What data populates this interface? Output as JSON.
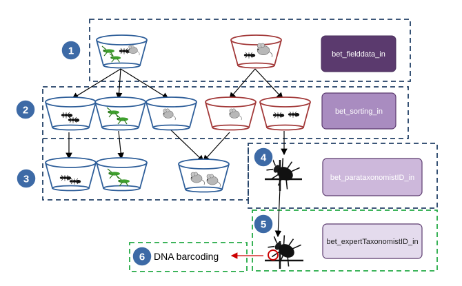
{
  "steps": [
    {
      "number": "1"
    },
    {
      "number": "2"
    },
    {
      "number": "3"
    },
    {
      "number": "4"
    },
    {
      "number": "5"
    },
    {
      "number": "6"
    }
  ],
  "tables": {
    "fielddata": "bet_fielddata_in",
    "sorting": "bet_sorting_in",
    "parataxonomist": "bet_parataxonomistID_in",
    "expert": "bet_expertTaxonomistID_in"
  },
  "dna_label": "DNA barcoding",
  "colors": {
    "blue_cup": "#2f5f9a",
    "red_cup": "#a33a3a",
    "dashed_blue": "#203f66",
    "dashed_green": "#22aa44",
    "circle_fill": "#3d6aa6",
    "fielddata_fill": "#5b3a6e",
    "sorting_fill": "#a98cc0",
    "parataxonomist_fill": "#cdb8db",
    "expert_fill": "#e4dbed",
    "red_arrow": "#cc0000"
  },
  "icons": [
    "ant-icon",
    "grasshopper-icon",
    "mouse-icon",
    "beetle-icon",
    "pin-icon"
  ]
}
